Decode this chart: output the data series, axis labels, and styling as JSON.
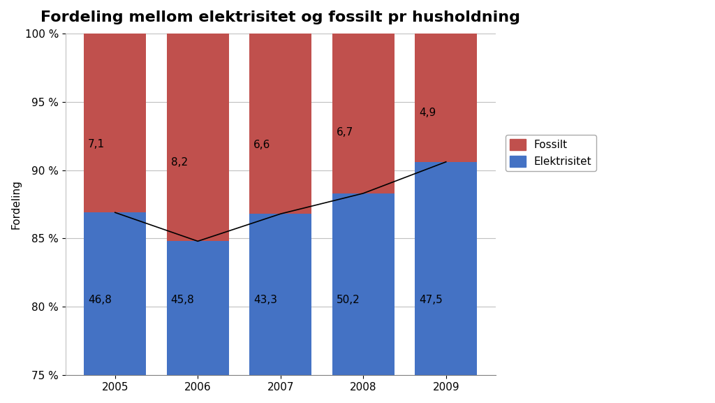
{
  "title": "Fordeling mellom elektrisitet og fossilt pr husholdning",
  "ylabel": "Fordeling",
  "years": [
    "2005",
    "2006",
    "2007",
    "2008",
    "2009"
  ],
  "elektrisitet_pct": [
    86.9,
    84.8,
    86.8,
    88.3,
    90.6
  ],
  "elektrisitet_labels": [
    "46,8",
    "45,8",
    "43,3",
    "50,2",
    "47,5"
  ],
  "fossilt_labels": [
    "7,1",
    "8,2",
    "6,6",
    "6,7",
    "4,9"
  ],
  "elec_color": "#4472C4",
  "fossil_color": "#C0504D",
  "line_color": "#000000",
  "ylim_min": 75,
  "ylim_max": 100,
  "yticks": [
    75,
    80,
    85,
    90,
    95,
    100
  ],
  "ytick_labels": [
    "75 %",
    "80 %",
    "85 %",
    "90 %",
    "95 %",
    "100 %"
  ],
  "bar_width": 0.75,
  "title_fontsize": 16,
  "label_fontsize": 11,
  "tick_fontsize": 11,
  "legend_fontsize": 11,
  "background_color": "#ffffff",
  "grid_color": "#c0c0c0"
}
